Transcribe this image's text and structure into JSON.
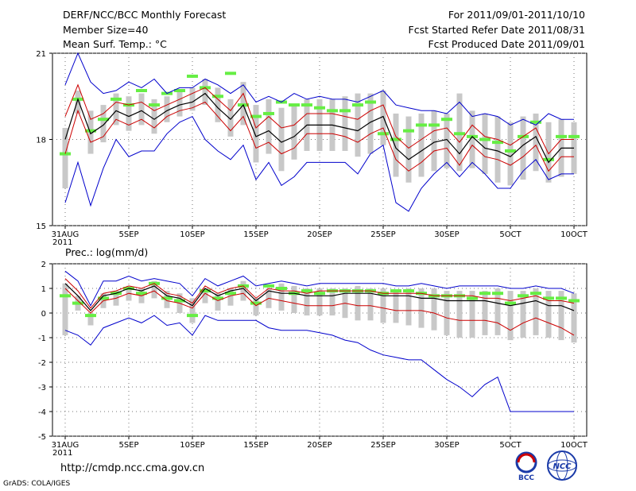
{
  "header": {
    "title": "DERF/NCC/BCC Monthly Forecast",
    "member_size": "Member Size=40",
    "variable": "Mean Surf. Temp.: °C",
    "period": "For 2011/09/01-2011/10/10",
    "started": "Fcst Started Refer Date 2011/08/31",
    "produced": "Fcst Produced Date 2011/09/01"
  },
  "footer": {
    "url": "http://cmdp.ncc.cma.gov.cn",
    "grads": "GrADS: COLA/IGES",
    "logo_left_text": "BCC",
    "logo_right_text": "NCC"
  },
  "colors": {
    "max_min": "#0000cc",
    "ens_band": "#cc0000",
    "mean": "#000000",
    "box": "#c8c8c8",
    "member": "#66ee44"
  },
  "x_tick_labels": [
    "31AUG",
    "5SEP",
    "10SEP",
    "15SEP",
    "20SEP",
    "25SEP",
    "30SEP",
    "5OCT",
    "10OCT"
  ],
  "x_year_label": "2011",
  "chart_data": [
    {
      "type": "line",
      "title": "Mean Surf. Temp.: °C",
      "days": 41,
      "ylim": [
        15,
        21
      ],
      "yticks": [
        "21",
        "18",
        "15"
      ],
      "series": [
        {
          "name": "max",
          "values": [
            19.9,
            21.0,
            20.0,
            19.6,
            19.7,
            20.0,
            19.8,
            20.1,
            19.6,
            19.8,
            19.8,
            20.1,
            19.9,
            19.6,
            19.9,
            19.3,
            19.5,
            19.3,
            19.6,
            19.4,
            19.5,
            19.4,
            19.4,
            19.3,
            19.5,
            19.7,
            19.2,
            19.1,
            19.0,
            19.0,
            18.9,
            19.3,
            18.8,
            18.9,
            18.8,
            18.5,
            18.7,
            18.5,
            18.9,
            18.7,
            18.7
          ]
        },
        {
          "name": "band_upper",
          "values": [
            18.8,
            19.9,
            18.7,
            18.9,
            19.3,
            19.2,
            19.3,
            19.0,
            19.2,
            19.4,
            19.6,
            19.8,
            19.4,
            19.0,
            19.6,
            18.4,
            18.8,
            18.4,
            18.5,
            18.9,
            18.9,
            18.9,
            18.8,
            18.7,
            19.0,
            19.2,
            18.1,
            17.7,
            18.0,
            18.3,
            18.4,
            17.9,
            18.5,
            18.1,
            18.0,
            17.8,
            18.1,
            18.4,
            17.5,
            18.0,
            18.0
          ]
        },
        {
          "name": "mean",
          "values": [
            18.0,
            19.4,
            18.2,
            18.5,
            19.0,
            18.8,
            19.0,
            18.7,
            19.0,
            19.2,
            19.3,
            19.6,
            19.1,
            18.7,
            19.2,
            18.1,
            18.3,
            17.9,
            18.1,
            18.5,
            18.5,
            18.5,
            18.4,
            18.3,
            18.6,
            18.8,
            17.7,
            17.3,
            17.6,
            17.9,
            18.0,
            17.5,
            18.1,
            17.7,
            17.6,
            17.4,
            17.8,
            18.1,
            17.2,
            17.7,
            17.7
          ]
        },
        {
          "name": "band_lower",
          "values": [
            17.5,
            19.0,
            17.9,
            18.1,
            18.7,
            18.5,
            18.7,
            18.4,
            18.8,
            19.0,
            19.1,
            19.3,
            18.8,
            18.3,
            18.8,
            17.7,
            17.9,
            17.5,
            17.7,
            18.2,
            18.2,
            18.2,
            18.1,
            17.9,
            18.2,
            18.4,
            17.3,
            16.9,
            17.2,
            17.6,
            17.7,
            17.1,
            17.8,
            17.4,
            17.3,
            17.1,
            17.4,
            17.8,
            16.9,
            17.4,
            17.4
          ]
        },
        {
          "name": "min",
          "values": [
            15.8,
            17.2,
            15.7,
            17.0,
            18.0,
            17.4,
            17.6,
            17.6,
            18.2,
            18.6,
            18.8,
            18.0,
            17.6,
            17.3,
            17.8,
            16.6,
            17.2,
            16.4,
            16.7,
            17.2,
            17.2,
            17.2,
            17.2,
            16.8,
            17.5,
            17.8,
            15.8,
            15.5,
            16.3,
            16.8,
            17.2,
            16.7,
            17.2,
            16.8,
            16.3,
            16.3,
            16.9,
            17.3,
            16.6,
            16.8,
            16.8
          ]
        },
        {
          "name": "box_top",
          "values": [
            18.4,
            19.7,
            19.0,
            19.2,
            19.6,
            19.5,
            19.6,
            19.4,
            19.5,
            19.7,
            19.8,
            20.1,
            19.8,
            19.4,
            20.0,
            19.2,
            19.4,
            19.1,
            19.2,
            19.4,
            19.4,
            19.4,
            19.5,
            19.6,
            19.6,
            19.7,
            18.9,
            18.8,
            18.9,
            19.0,
            18.9,
            19.6,
            19.0,
            18.9,
            18.8,
            18.6,
            18.8,
            18.9,
            18.6,
            18.7,
            18.6
          ]
        },
        {
          "name": "box_bottom",
          "values": [
            16.3,
            18.9,
            17.5,
            17.9,
            18.5,
            18.3,
            18.5,
            18.2,
            18.6,
            18.8,
            19.0,
            19.2,
            18.6,
            18.1,
            18.5,
            17.2,
            17.5,
            16.9,
            17.3,
            17.6,
            17.6,
            17.6,
            17.6,
            17.4,
            17.5,
            17.8,
            16.7,
            16.5,
            16.7,
            16.9,
            17.0,
            16.9,
            17.0,
            16.8,
            16.5,
            16.4,
            16.6,
            16.9,
            16.5,
            16.7,
            16.8
          ]
        },
        {
          "name": "member_mark",
          "values": [
            17.5,
            19.4,
            18.3,
            18.7,
            19.4,
            19.2,
            19.7,
            19.2,
            19.6,
            19.7,
            20.2,
            19.8,
            19.5,
            20.3,
            19.2,
            18.8,
            18.9,
            19.3,
            19.2,
            19.2,
            19.1,
            19.0,
            19.0,
            19.2,
            19.3,
            18.2,
            18.0,
            18.3,
            18.5,
            18.5,
            18.7,
            18.2,
            18.1,
            18.0,
            17.9,
            17.6,
            18.1,
            18.6,
            17.3,
            18.1,
            18.1
          ]
        }
      ]
    },
    {
      "type": "line",
      "title": "Prec.: log(mm/d)",
      "days": 41,
      "ylim": [
        -5,
        2
      ],
      "yticks": [
        "2",
        "1",
        "0",
        "-1",
        "-2",
        "-3",
        "-4",
        "-5"
      ],
      "series": [
        {
          "name": "max",
          "values": [
            1.7,
            1.3,
            0.3,
            1.3,
            1.3,
            1.5,
            1.3,
            1.4,
            1.3,
            1.2,
            0.7,
            1.4,
            1.1,
            1.3,
            1.5,
            1.1,
            1.2,
            1.3,
            1.2,
            1.1,
            1.2,
            1.2,
            1.2,
            1.2,
            1.2,
            1.2,
            1.1,
            1.1,
            1.2,
            1.1,
            1.0,
            1.1,
            1.1,
            1.1,
            1.1,
            1.0,
            1.0,
            1.1,
            1.0,
            1.0,
            0.8
          ]
        },
        {
          "name": "band_upper",
          "values": [
            1.4,
            0.9,
            0.2,
            0.8,
            0.9,
            1.1,
            1.0,
            1.2,
            0.8,
            0.7,
            0.4,
            1.1,
            0.8,
            1.0,
            1.1,
            0.6,
            1.0,
            0.9,
            0.9,
            0.8,
            0.9,
            0.9,
            0.9,
            0.9,
            0.9,
            0.8,
            0.8,
            0.8,
            0.8,
            0.7,
            0.7,
            0.7,
            0.7,
            0.6,
            0.6,
            0.5,
            0.6,
            0.7,
            0.5,
            0.5,
            0.4
          ]
        },
        {
          "name": "mean",
          "values": [
            1.2,
            0.7,
            0.1,
            0.7,
            0.8,
            1.0,
            0.9,
            1.1,
            0.7,
            0.6,
            0.3,
            1.0,
            0.7,
            0.9,
            1.0,
            0.5,
            0.9,
            0.8,
            0.8,
            0.7,
            0.7,
            0.7,
            0.8,
            0.8,
            0.8,
            0.7,
            0.7,
            0.7,
            0.6,
            0.6,
            0.5,
            0.5,
            0.5,
            0.5,
            0.4,
            0.3,
            0.4,
            0.5,
            0.3,
            0.3,
            0.1
          ]
        },
        {
          "name": "band_lower",
          "values": [
            1.0,
            0.5,
            0.0,
            0.5,
            0.6,
            0.8,
            0.7,
            0.9,
            0.5,
            0.4,
            0.2,
            0.8,
            0.5,
            0.7,
            0.8,
            0.3,
            0.6,
            0.5,
            0.4,
            0.3,
            0.3,
            0.3,
            0.4,
            0.3,
            0.3,
            0.2,
            0.1,
            0.1,
            0.1,
            0.0,
            -0.2,
            -0.3,
            -0.3,
            -0.3,
            -0.4,
            -0.7,
            -0.4,
            -0.2,
            -0.4,
            -0.6,
            -0.9
          ]
        },
        {
          "name": "min",
          "values": [
            -0.7,
            -0.9,
            -1.3,
            -0.6,
            -0.4,
            -0.2,
            -0.4,
            -0.1,
            -0.5,
            -0.4,
            -0.9,
            -0.1,
            -0.3,
            -0.3,
            -0.3,
            -0.3,
            -0.6,
            -0.7,
            -0.7,
            -0.7,
            -0.8,
            -0.9,
            -1.1,
            -1.2,
            -1.5,
            -1.7,
            -1.8,
            -1.9,
            -1.9,
            -2.3,
            -2.7,
            -3.0,
            -3.4,
            -2.9,
            -2.6,
            -4.0,
            -4.0,
            -4.0,
            -4.0,
            -4.0,
            -4.0
          ]
        },
        {
          "name": "box_top",
          "values": [
            1.2,
            0.7,
            0.0,
            0.8,
            0.9,
            1.1,
            1.0,
            1.3,
            0.9,
            0.8,
            0.6,
            1.0,
            0.8,
            1.0,
            1.3,
            0.6,
            1.0,
            1.2,
            1.1,
            1.0,
            1.0,
            1.0,
            1.0,
            1.1,
            1.0,
            1.0,
            0.9,
            1.0,
            1.0,
            1.0,
            0.9,
            0.9,
            0.9,
            0.9,
            1.0,
            0.9,
            0.9,
            1.0,
            0.9,
            0.9,
            0.8
          ]
        },
        {
          "name": "box_bottom",
          "values": [
            -0.9,
            0.1,
            -0.5,
            0.2,
            0.3,
            0.5,
            0.4,
            0.6,
            0.2,
            0.0,
            -0.4,
            0.4,
            0.1,
            0.3,
            0.5,
            -0.1,
            0.2,
            0.1,
            0.0,
            -0.1,
            -0.1,
            -0.1,
            -0.2,
            -0.3,
            -0.3,
            -0.4,
            -0.4,
            -0.5,
            -0.6,
            -0.7,
            -0.9,
            -1.0,
            -1.0,
            -0.9,
            -0.9,
            -1.1,
            -1.0,
            -0.9,
            -1.0,
            -1.1,
            -1.2
          ]
        },
        {
          "name": "member_mark",
          "values": [
            0.7,
            0.4,
            -0.1,
            0.6,
            0.8,
            1.0,
            0.8,
            1.2,
            0.6,
            0.5,
            -0.1,
            0.9,
            0.6,
            0.8,
            1.1,
            0.4,
            1.1,
            1.0,
            0.8,
            0.9,
            0.8,
            0.9,
            0.9,
            0.9,
            0.9,
            0.8,
            0.9,
            0.9,
            0.8,
            0.7,
            0.7,
            0.7,
            0.6,
            0.8,
            0.8,
            0.4,
            0.7,
            0.8,
            0.6,
            0.6,
            0.5
          ]
        }
      ]
    }
  ]
}
